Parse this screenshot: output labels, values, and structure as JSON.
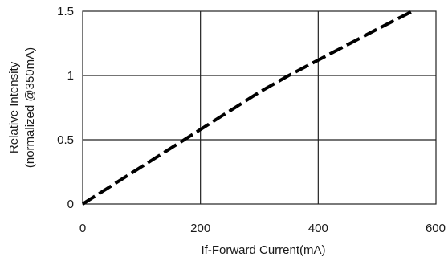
{
  "chart_data": {
    "type": "line",
    "xlabel": "If-Forward Current(mA)",
    "ylabel": [
      "Relative Intensity",
      "(normalized @350mA)"
    ],
    "xlim": [
      0,
      600
    ],
    "ylim": [
      0,
      1.5
    ],
    "x_ticks": [
      0,
      200,
      400,
      600
    ],
    "y_ticks": [
      0,
      0.5,
      1,
      1.5
    ],
    "x_tick_labels": [
      "0",
      "200",
      "400",
      "600"
    ],
    "y_tick_labels": [
      "0",
      "0.5",
      "1",
      "1.5"
    ],
    "grid": true,
    "line_style": "dashed",
    "series": [
      {
        "x": [
          0,
          100,
          200,
          300,
          350,
          400,
          500,
          560
        ],
        "y": [
          0,
          0.29,
          0.58,
          0.87,
          1.0,
          1.12,
          1.36,
          1.5
        ]
      }
    ]
  }
}
